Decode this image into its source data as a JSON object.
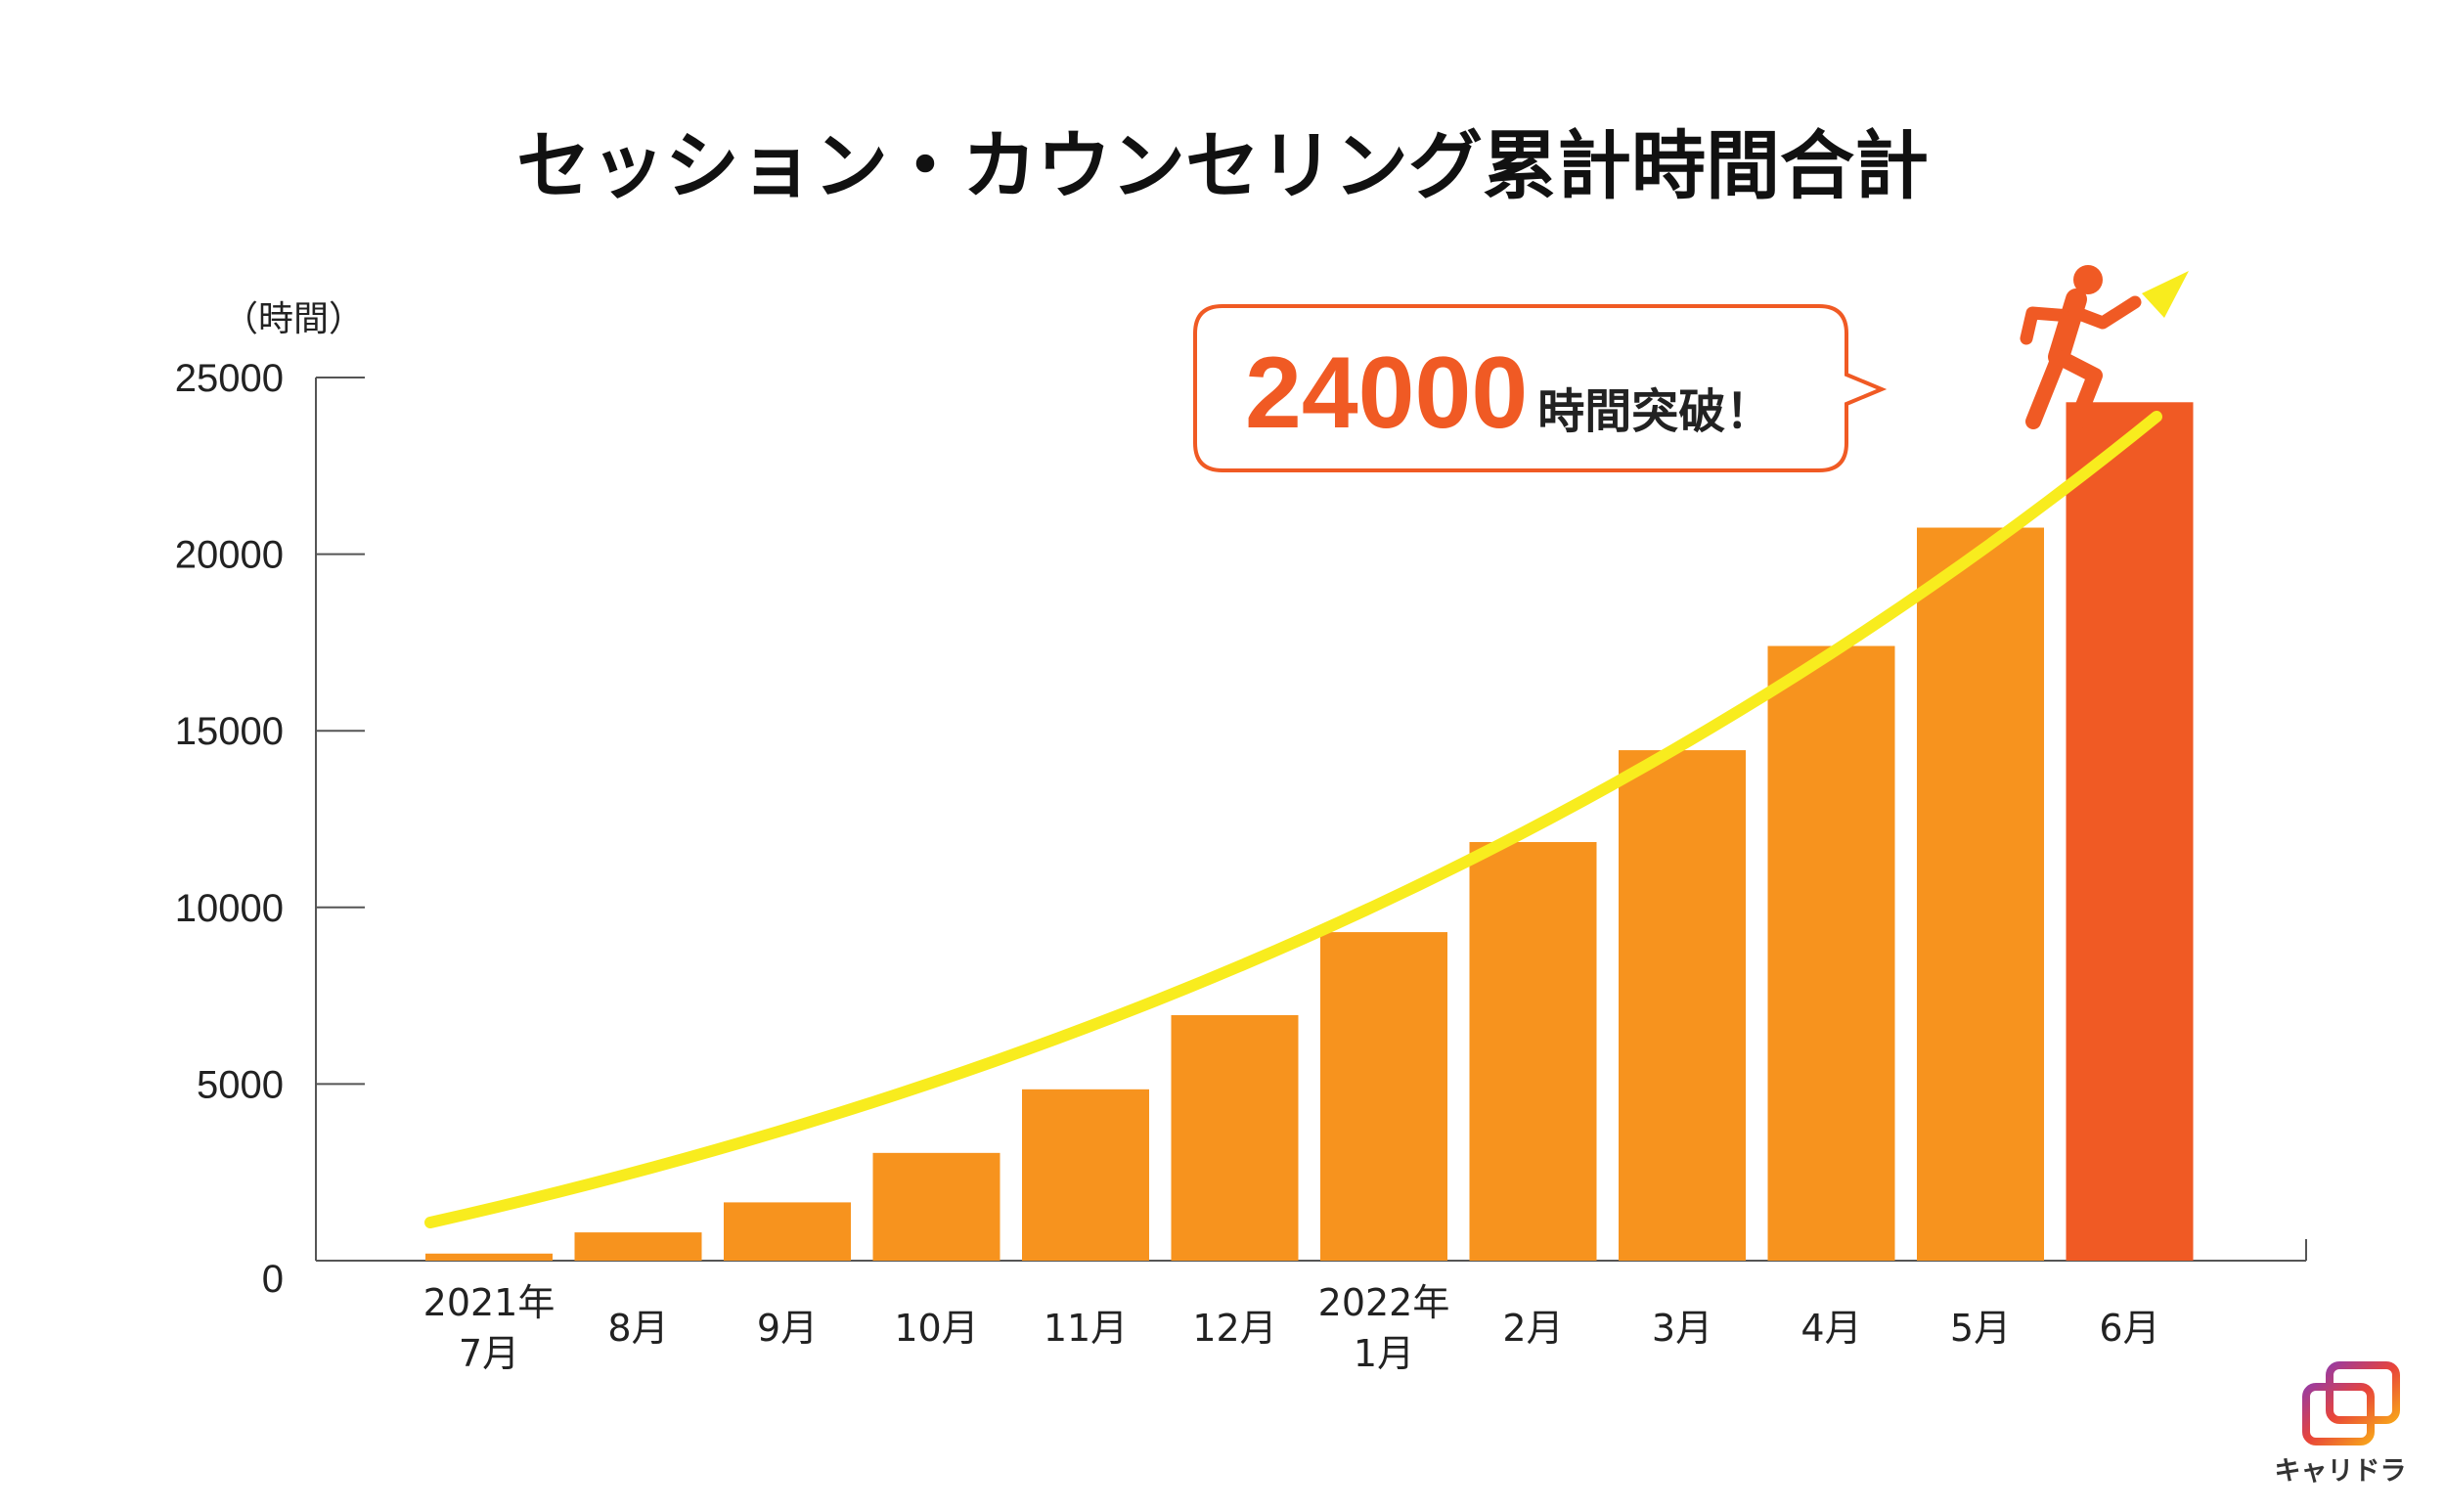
{
  "chart_data": {
    "type": "bar",
    "title": "セッション・カウンセリング累計時間合計",
    "ylabel": "（時間）",
    "ylim": [
      0,
      25000
    ],
    "yticks": [
      "0",
      "5000",
      "10000",
      "15000",
      "20000",
      "25000"
    ],
    "categories": [
      [
        "2021年",
        "7月"
      ],
      [
        "8月"
      ],
      [
        "9月"
      ],
      [
        "10月"
      ],
      [
        "11月"
      ],
      [
        "12月"
      ],
      [
        "2022年",
        "1月"
      ],
      [
        "2月"
      ],
      [
        "3月"
      ],
      [
        "4月"
      ],
      [
        "5月"
      ],
      [
        "6月"
      ]
    ],
    "values": [
      200,
      800,
      1650,
      3050,
      4850,
      6950,
      9300,
      11850,
      14450,
      17400,
      20750,
      24300
    ],
    "grid": false,
    "bar_color": "#F7931E",
    "highlight_color": "#F05A24",
    "highlight_index": 11,
    "trend_arrow_color": "#F8EC1E"
  },
  "callout": {
    "big": "24000",
    "small": "時間突破！",
    "color": "#F05A24"
  },
  "logo": {
    "text": "キャリドラ",
    "icon": "logo-icon"
  },
  "runner_icon": "running-person-icon"
}
